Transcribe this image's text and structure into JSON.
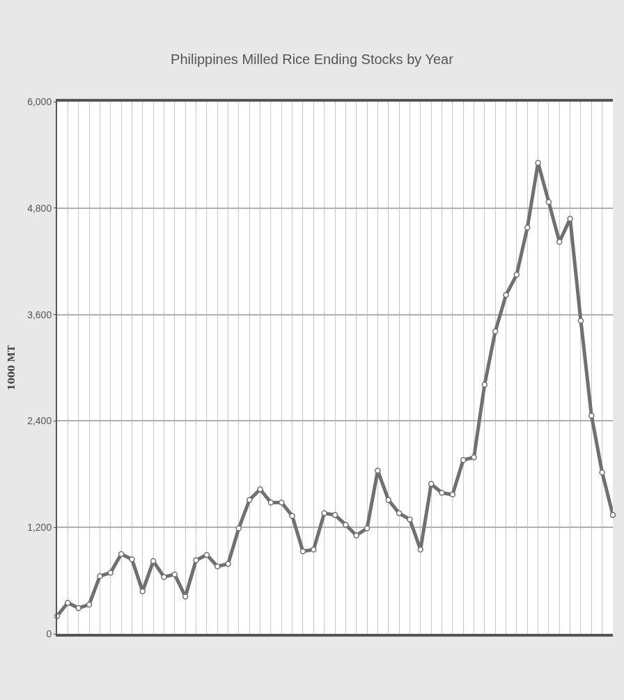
{
  "chart_data": {
    "type": "line",
    "title": "Philippines Milled Rice Ending Stocks by Year",
    "ylabel": "1000 MT",
    "categories": [
      null,
      null,
      null,
      null,
      null,
      null,
      null,
      null,
      null,
      null,
      null,
      null,
      null,
      null,
      null,
      null,
      null,
      null,
      null,
      null,
      null,
      null,
      null,
      null,
      null,
      null,
      null,
      null,
      null,
      null,
      null,
      null,
      null,
      null,
      null,
      null,
      null,
      null,
      null,
      null,
      null,
      null,
      null,
      null,
      null,
      null,
      null,
      null,
      null,
      null,
      null,
      null,
      null
    ],
    "series": [
      {
        "color": "#707070",
        "values": [
          200,
          350,
          290,
          330,
          650,
          690,
          900,
          840,
          480,
          820,
          640,
          670,
          420,
          830,
          890,
          760,
          790,
          1190,
          1510,
          1630,
          1480,
          1480,
          1330,
          930,
          950,
          1360,
          1340,
          1230,
          1110,
          1190,
          1840,
          1510,
          1360,
          1290,
          950,
          1690,
          1590,
          1570,
          1960,
          1990,
          2810,
          3410,
          3820,
          4050,
          4580,
          5310,
          4870,
          4420,
          4680,
          3530,
          2460,
          1820,
          1340
        ]
      }
    ],
    "ylim": [
      0,
      6000
    ],
    "yticks": [
      0,
      {
        "value": 1200,
        "label": "1,200"
      },
      {
        "value": 2400,
        "label": "2,400"
      },
      {
        "value": 3600,
        "label": "3,600"
      },
      {
        "value": 4800,
        "label": "4,800"
      },
      {
        "value": 6000,
        "label": "6,000"
      }
    ],
    "grid": true,
    "marker": "circle",
    "line_style": "solid",
    "tick_labels": "y"
  }
}
